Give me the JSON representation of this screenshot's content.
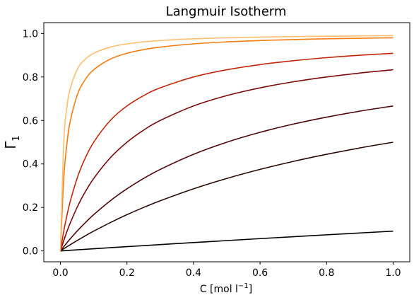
{
  "chart_data": {
    "type": "line",
    "title": "Langmuir Isotherm",
    "xlabel": "C [mol l",
    "xlabel_sup": "−1",
    "xlabel_close": "]",
    "ylabel": "Γ",
    "ylabel_sub": "1",
    "xlim": [
      -0.05,
      1.05
    ],
    "ylim": [
      -0.05,
      1.05
    ],
    "xticks": [
      "0.0",
      "0.2",
      "0.4",
      "0.6",
      "0.8",
      "1.0"
    ],
    "yticks": [
      "0.0",
      "0.2",
      "0.4",
      "0.6",
      "0.8",
      "1.0"
    ],
    "x": [
      0,
      0.01,
      0.02,
      0.03,
      0.05,
      0.07,
      0.1,
      0.15,
      0.2,
      0.25,
      0.3,
      0.4,
      0.5,
      0.6,
      0.7,
      0.8,
      0.9,
      1.0
    ],
    "series": [
      {
        "color": "#000000",
        "values": [
          0,
          0.001,
          0.002,
          0.003,
          0.005,
          0.007,
          0.0099,
          0.0148,
          0.0196,
          0.0244,
          0.0291,
          0.0385,
          0.0476,
          0.0566,
          0.0654,
          0.0741,
          0.0826,
          0.0909
        ]
      },
      {
        "color": "#2a0a04",
        "values": [
          0,
          0.0099,
          0.0196,
          0.0291,
          0.0476,
          0.0654,
          0.0909,
          0.1304,
          0.1667,
          0.2,
          0.2308,
          0.2857,
          0.3333,
          0.375,
          0.4118,
          0.4444,
          0.4737,
          0.5
        ]
      },
      {
        "color": "#4c0808",
        "values": [
          0,
          0.0196,
          0.0385,
          0.0566,
          0.0909,
          0.1228,
          0.1667,
          0.2308,
          0.2857,
          0.3333,
          0.375,
          0.4444,
          0.5,
          0.5455,
          0.5833,
          0.6154,
          0.6429,
          0.6667
        ]
      },
      {
        "color": "#7a0a0a",
        "values": [
          0,
          0.0476,
          0.0909,
          0.1304,
          0.2,
          0.2593,
          0.3333,
          0.4286,
          0.5,
          0.5556,
          0.6,
          0.6667,
          0.7143,
          0.75,
          0.7778,
          0.8,
          0.8182,
          0.8333
        ]
      },
      {
        "color": "#c2260a",
        "values": [
          0,
          0.0909,
          0.1667,
          0.2308,
          0.3333,
          0.4118,
          0.5,
          0.6,
          0.6667,
          0.7143,
          0.75,
          0.8,
          0.8333,
          0.8571,
          0.875,
          0.8889,
          0.9,
          0.9091
        ]
      },
      {
        "color": "#f07d12",
        "values": [
          0,
          0.3333,
          0.5,
          0.6,
          0.7143,
          0.7778,
          0.8333,
          0.8824,
          0.9091,
          0.9259,
          0.9375,
          0.9524,
          0.9615,
          0.9677,
          0.9722,
          0.9756,
          0.9783,
          0.9804
        ]
      },
      {
        "color": "#fdbf6f",
        "values": [
          0,
          0.5,
          0.6667,
          0.75,
          0.8333,
          0.875,
          0.9091,
          0.9375,
          0.9524,
          0.9615,
          0.9677,
          0.9756,
          0.9804,
          0.9836,
          0.9859,
          0.9877,
          0.989,
          0.9901
        ]
      }
    ]
  }
}
